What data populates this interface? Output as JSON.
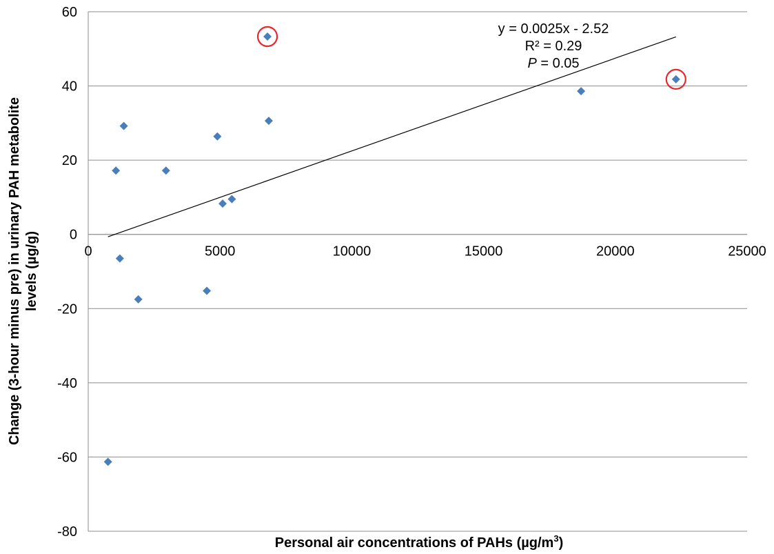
{
  "chart_data": {
    "type": "scatter",
    "xlabel": "Personal air concentrations of PAHs (µg/m",
    "xlabel_sup": "3",
    "xlabel_end": ")",
    "ylabel_line1": "Change (3-hour minus pre) in urinary PAH metabolite",
    "ylabel_line2": "levels (µg/g)",
    "xlim": [
      0,
      25000
    ],
    "ylim": [
      -80,
      60
    ],
    "x_ticks": [
      0,
      5000,
      10000,
      15000,
      20000,
      25000
    ],
    "y_ticks": [
      -80,
      -60,
      -40,
      -20,
      0,
      20,
      40,
      60
    ],
    "grid": "horizontal",
    "points": [
      {
        "x": 6800,
        "y": 53.3
      },
      {
        "x": 22300,
        "y": 41.8
      },
      {
        "x": 18700,
        "y": 38.6
      },
      {
        "x": 6850,
        "y": 30.6
      },
      {
        "x": 1350,
        "y": 29.2
      },
      {
        "x": 4900,
        "y": 26.4
      },
      {
        "x": 1050,
        "y": 17.2
      },
      {
        "x": 2950,
        "y": 17.2
      },
      {
        "x": 5450,
        "y": 9.5
      },
      {
        "x": 5100,
        "y": 8.3
      },
      {
        "x": 1200,
        "y": -6.5
      },
      {
        "x": 1900,
        "y": -17.5
      },
      {
        "x": 4500,
        "y": -15.2
      },
      {
        "x": 750,
        "y": -61.3
      }
    ],
    "highlighted_points": [
      0,
      1
    ],
    "trendline": {
      "x_start": 750,
      "x_end": 22300,
      "slope": 0.0025,
      "intercept": -2.52,
      "label_line1": "y = 0.0025x - 2.52",
      "label_line2": "R² = 0.29",
      "label_line3_italic": "P",
      "label_line3_rest": " = 0.05"
    },
    "colors": {
      "points": "#4a7ebb",
      "highlight": "#e8262b",
      "grid": "#8c8c8c",
      "trendline": "#000000"
    }
  }
}
